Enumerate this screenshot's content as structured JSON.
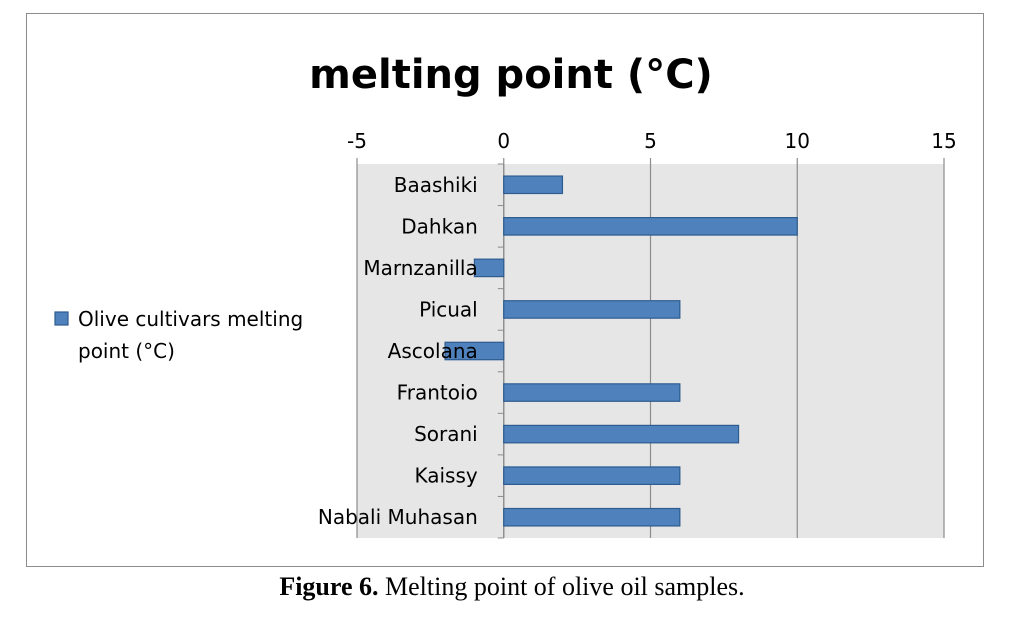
{
  "chart_data": {
    "type": "bar",
    "orientation": "horizontal",
    "title": "melting point (°C)",
    "categories": [
      "Baashiki",
      "Dahkan",
      "Marnzanilla",
      "Picual",
      "Ascolana",
      "Frantoio",
      "Sorani",
      "Kaissy",
      "Nabali Muhasan"
    ],
    "series": [
      {
        "name": "Olive cultivars melting point (°C)",
        "values": [
          2,
          10,
          -1,
          6,
          -2,
          6,
          8,
          6,
          6
        ]
      }
    ],
    "xlim": [
      -5,
      15
    ],
    "xticks": [
      "-5",
      "0",
      "5",
      "10",
      "15"
    ],
    "x_axis_position": "top",
    "grid": true,
    "legend": "left",
    "legend_lines": [
      "Olive cultivars melting",
      "point (°C)"
    ]
  },
  "colors": {
    "bar_fill": "#4f81bd",
    "bar_stroke": "#2e5c8f",
    "plot_background": "#e6e6e6",
    "gridline": "#8c8c8c"
  },
  "caption": {
    "label": "Figure 6.",
    "text": " Melting point of olive oil samples."
  }
}
